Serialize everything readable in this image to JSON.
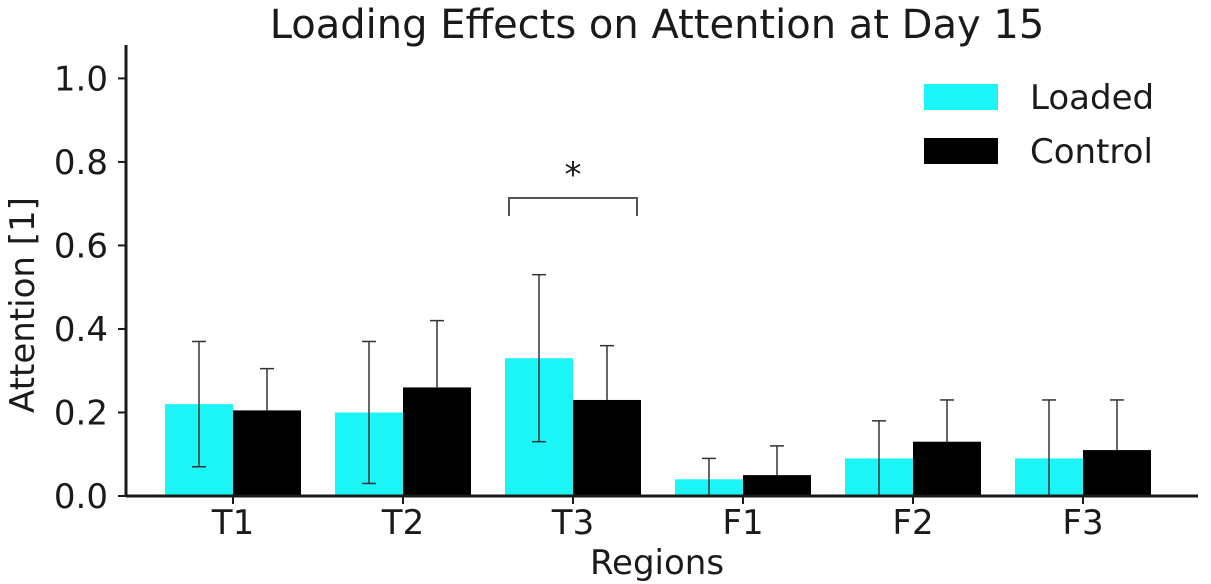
{
  "chart_data": {
    "type": "bar",
    "title": "Loading Effects on Attention at Day 15",
    "xlabel": "Regions",
    "ylabel": "Attention [1]",
    "categories": [
      "T1",
      "T2",
      "T3",
      "F1",
      "F2",
      "F3"
    ],
    "ylim": [
      0,
      1.08
    ],
    "yticks": [
      "0.0",
      "0.2",
      "0.4",
      "0.6",
      "0.8",
      "1.0"
    ],
    "grid": false,
    "legend_position": "top-right",
    "series": [
      {
        "name": "Loaded",
        "color": "#1cf5f5",
        "values": [
          0.22,
          0.2,
          0.33,
          0.04,
          0.09,
          0.09
        ],
        "error_upper": [
          0.15,
          0.17,
          0.2,
          0.05,
          0.09,
          0.14
        ],
        "error_lower": [
          0.15,
          0.17,
          0.2,
          0.04,
          0.09,
          0.09
        ]
      },
      {
        "name": "Control",
        "color": "#000000",
        "values": [
          0.205,
          0.26,
          0.23,
          0.05,
          0.13,
          0.11
        ],
        "error_upper": [
          0.1,
          0.16,
          0.13,
          0.07,
          0.1,
          0.12
        ],
        "error_lower": [
          0.0,
          0.0,
          0.0,
          0.0,
          0.0,
          0.0
        ]
      }
    ],
    "annotations": [
      {
        "text": "*",
        "category": "T3"
      }
    ]
  }
}
